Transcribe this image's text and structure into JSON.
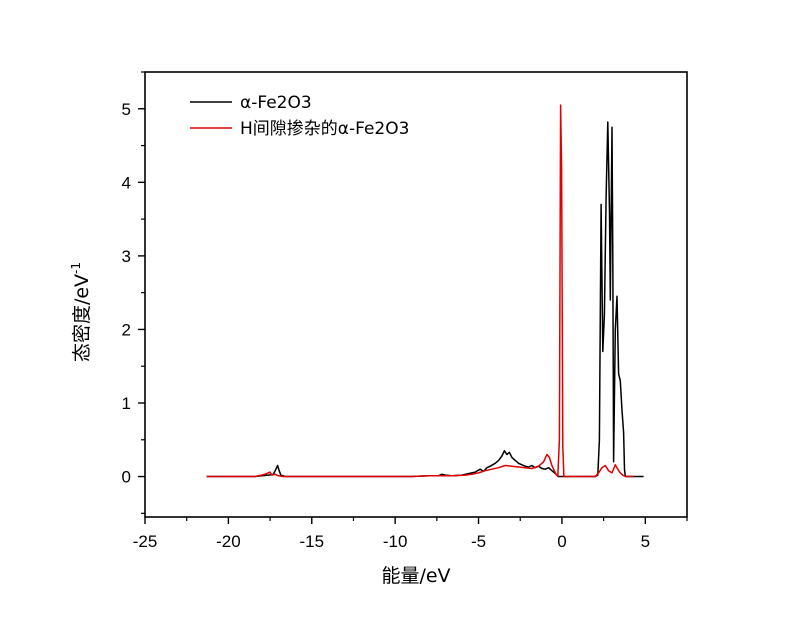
{
  "chart_data": {
    "type": "line",
    "xlabel": "能量/eV",
    "ylabel_main": "态密度/eV",
    "ylabel_sup": "-1",
    "xlim": [
      -25,
      7.5
    ],
    "ylim": [
      -0.55,
      5.5
    ],
    "xticks": [
      -25,
      -20,
      -15,
      -10,
      -5,
      0,
      5
    ],
    "xtick_labels": [
      "-25",
      "-20",
      "-15",
      "-10",
      "-5",
      "0",
      "5"
    ],
    "yticks": [
      0,
      1,
      2,
      3,
      4,
      5
    ],
    "ytick_labels": [
      "0",
      "1",
      "2",
      "3",
      "4",
      "5"
    ],
    "legend_position": "top-left",
    "series": [
      {
        "name": "α-Fe2O3",
        "color": "#000000",
        "points": [
          [
            -21.3,
            0
          ],
          [
            -18.4,
            0
          ],
          [
            -18.0,
            0.01
          ],
          [
            -17.6,
            0.02
          ],
          [
            -17.3,
            0.03
          ],
          [
            -17.15,
            0.1
          ],
          [
            -17.05,
            0.15
          ],
          [
            -16.95,
            0.08
          ],
          [
            -16.85,
            0.02
          ],
          [
            -16.6,
            0
          ],
          [
            -9.0,
            0
          ],
          [
            -8.0,
            0.01
          ],
          [
            -7.4,
            0.01
          ],
          [
            -7.2,
            0.03
          ],
          [
            -7.0,
            0.02
          ],
          [
            -6.6,
            0.01
          ],
          [
            -6.0,
            0.02
          ],
          [
            -5.6,
            0.04
          ],
          [
            -5.2,
            0.06
          ],
          [
            -4.9,
            0.1
          ],
          [
            -4.7,
            0.07
          ],
          [
            -4.5,
            0.12
          ],
          [
            -4.3,
            0.14
          ],
          [
            -4.0,
            0.18
          ],
          [
            -3.8,
            0.22
          ],
          [
            -3.6,
            0.28
          ],
          [
            -3.45,
            0.35
          ],
          [
            -3.3,
            0.3
          ],
          [
            -3.15,
            0.33
          ],
          [
            -3.0,
            0.26
          ],
          [
            -2.8,
            0.22
          ],
          [
            -2.6,
            0.18
          ],
          [
            -2.4,
            0.16
          ],
          [
            -2.2,
            0.14
          ],
          [
            -2.0,
            0.13
          ],
          [
            -1.8,
            0.15
          ],
          [
            -1.6,
            0.12
          ],
          [
            -1.4,
            0.14
          ],
          [
            -1.2,
            0.11
          ],
          [
            -1.0,
            0.1
          ],
          [
            -0.8,
            0.12
          ],
          [
            -0.6,
            0.08
          ],
          [
            -0.4,
            0.04
          ],
          [
            -0.2,
            0
          ],
          [
            2.0,
            0
          ],
          [
            2.15,
            0.02
          ],
          [
            2.25,
            0.5
          ],
          [
            2.35,
            3.7
          ],
          [
            2.45,
            1.7
          ],
          [
            2.55,
            2.2
          ],
          [
            2.65,
            3.8
          ],
          [
            2.75,
            4.82
          ],
          [
            2.85,
            3.6
          ],
          [
            2.9,
            2.4
          ],
          [
            3.0,
            4.75
          ],
          [
            3.05,
            3.0
          ],
          [
            3.1,
            0.2
          ],
          [
            3.2,
            2.0
          ],
          [
            3.3,
            2.45
          ],
          [
            3.4,
            1.4
          ],
          [
            3.5,
            1.3
          ],
          [
            3.6,
            0.9
          ],
          [
            3.7,
            0.6
          ],
          [
            3.75,
            0.1
          ],
          [
            3.8,
            0
          ],
          [
            4.9,
            0
          ]
        ]
      },
      {
        "name": "H间隙掺杂的α-Fe2O3",
        "color": "#e00000",
        "points": [
          [
            -21.3,
            0
          ],
          [
            -18.4,
            0
          ],
          [
            -18.0,
            0.02
          ],
          [
            -17.7,
            0.04
          ],
          [
            -17.5,
            0.06
          ],
          [
            -17.4,
            0.02
          ],
          [
            -17.2,
            0.03
          ],
          [
            -17.0,
            0.01
          ],
          [
            -16.7,
            0
          ],
          [
            -9.0,
            0
          ],
          [
            -8.0,
            0.01
          ],
          [
            -7.2,
            0.01
          ],
          [
            -6.5,
            0.01
          ],
          [
            -5.8,
            0.02
          ],
          [
            -5.4,
            0.03
          ],
          [
            -5.0,
            0.05
          ],
          [
            -4.6,
            0.08
          ],
          [
            -4.2,
            0.1
          ],
          [
            -3.8,
            0.12
          ],
          [
            -3.4,
            0.15
          ],
          [
            -3.0,
            0.14
          ],
          [
            -2.6,
            0.13
          ],
          [
            -2.2,
            0.12
          ],
          [
            -1.8,
            0.11
          ],
          [
            -1.4,
            0.14
          ],
          [
            -1.1,
            0.2
          ],
          [
            -0.9,
            0.3
          ],
          [
            -0.75,
            0.26
          ],
          [
            -0.6,
            0.15
          ],
          [
            -0.4,
            0.05
          ],
          [
            -0.25,
            0
          ],
          [
            -0.15,
            0.5
          ],
          [
            -0.08,
            5.05
          ],
          [
            -0.02,
            4.2
          ],
          [
            0.05,
            0.4
          ],
          [
            0.12,
            0
          ],
          [
            2.0,
            0
          ],
          [
            2.2,
            0.05
          ],
          [
            2.4,
            0.12
          ],
          [
            2.6,
            0.15
          ],
          [
            2.8,
            0.08
          ],
          [
            3.0,
            0.05
          ],
          [
            3.2,
            0.16
          ],
          [
            3.35,
            0.1
          ],
          [
            3.5,
            0.05
          ],
          [
            3.65,
            0.02
          ],
          [
            3.8,
            0
          ],
          [
            4.3,
            0
          ]
        ]
      }
    ]
  }
}
